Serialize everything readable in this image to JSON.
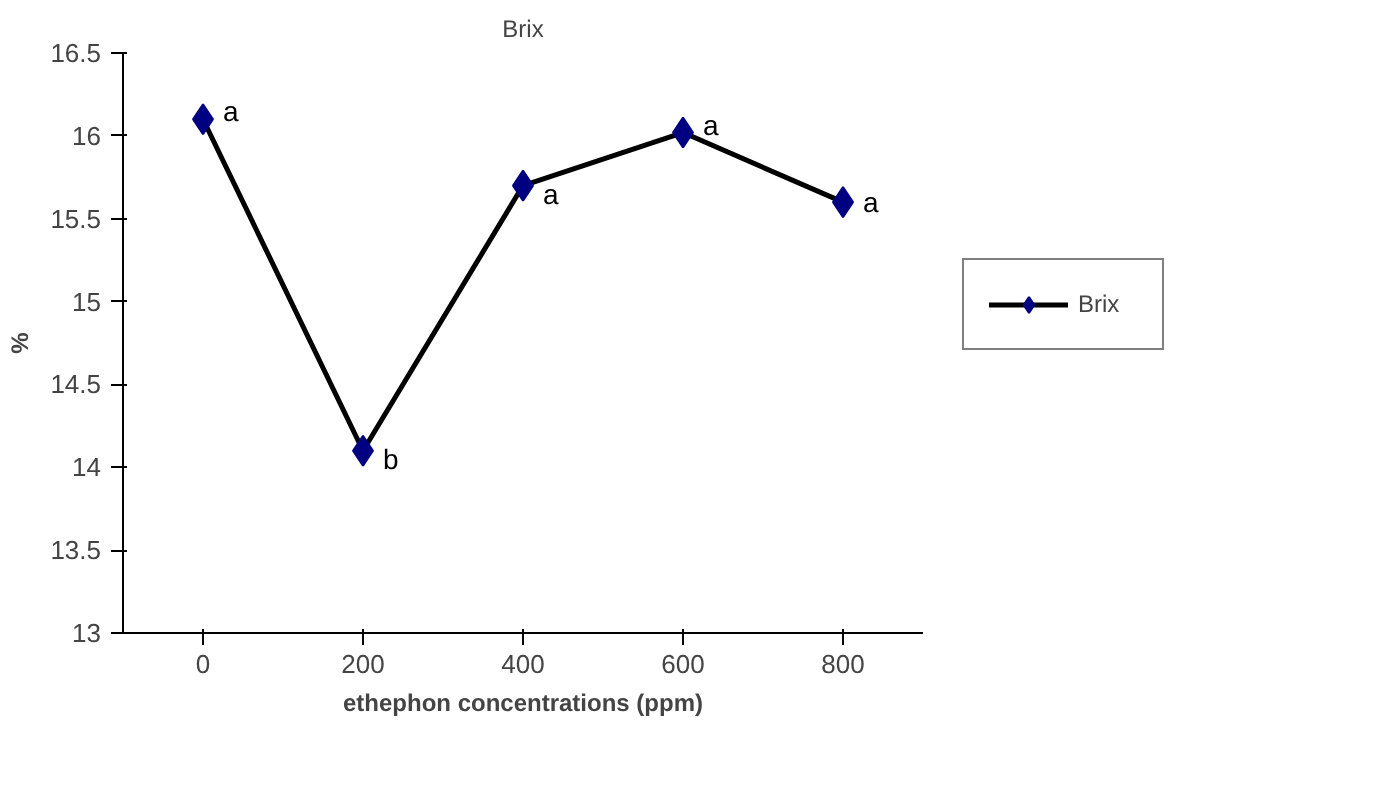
{
  "chart_data": {
    "type": "line",
    "title": "Brix",
    "xlabel": "ethephon concentrations (ppm)",
    "ylabel": "%",
    "categories": [
      "0",
      "200",
      "400",
      "600",
      "800"
    ],
    "series": [
      {
        "name": "Brix",
        "color": "#000080",
        "values": [
          16.1,
          14.1,
          15.7,
          16.02,
          15.6
        ]
      }
    ],
    "ylim": [
      13,
      16.5
    ],
    "yticks": [
      13,
      13.5,
      14,
      14.5,
      15,
      15.5,
      16,
      16.5
    ],
    "marker": "diamond",
    "line_style": "solid",
    "grid": false,
    "legend": "right",
    "annotations": [
      {
        "text": "a",
        "x": "0",
        "y": 16.1
      },
      {
        "text": "b",
        "x": "200",
        "y": 14.1
      },
      {
        "text": "a",
        "x": "400",
        "y": 15.7
      },
      {
        "text": "a",
        "x": "600",
        "y": 16.02
      },
      {
        "text": "a",
        "x": "800",
        "y": 15.6
      }
    ]
  }
}
